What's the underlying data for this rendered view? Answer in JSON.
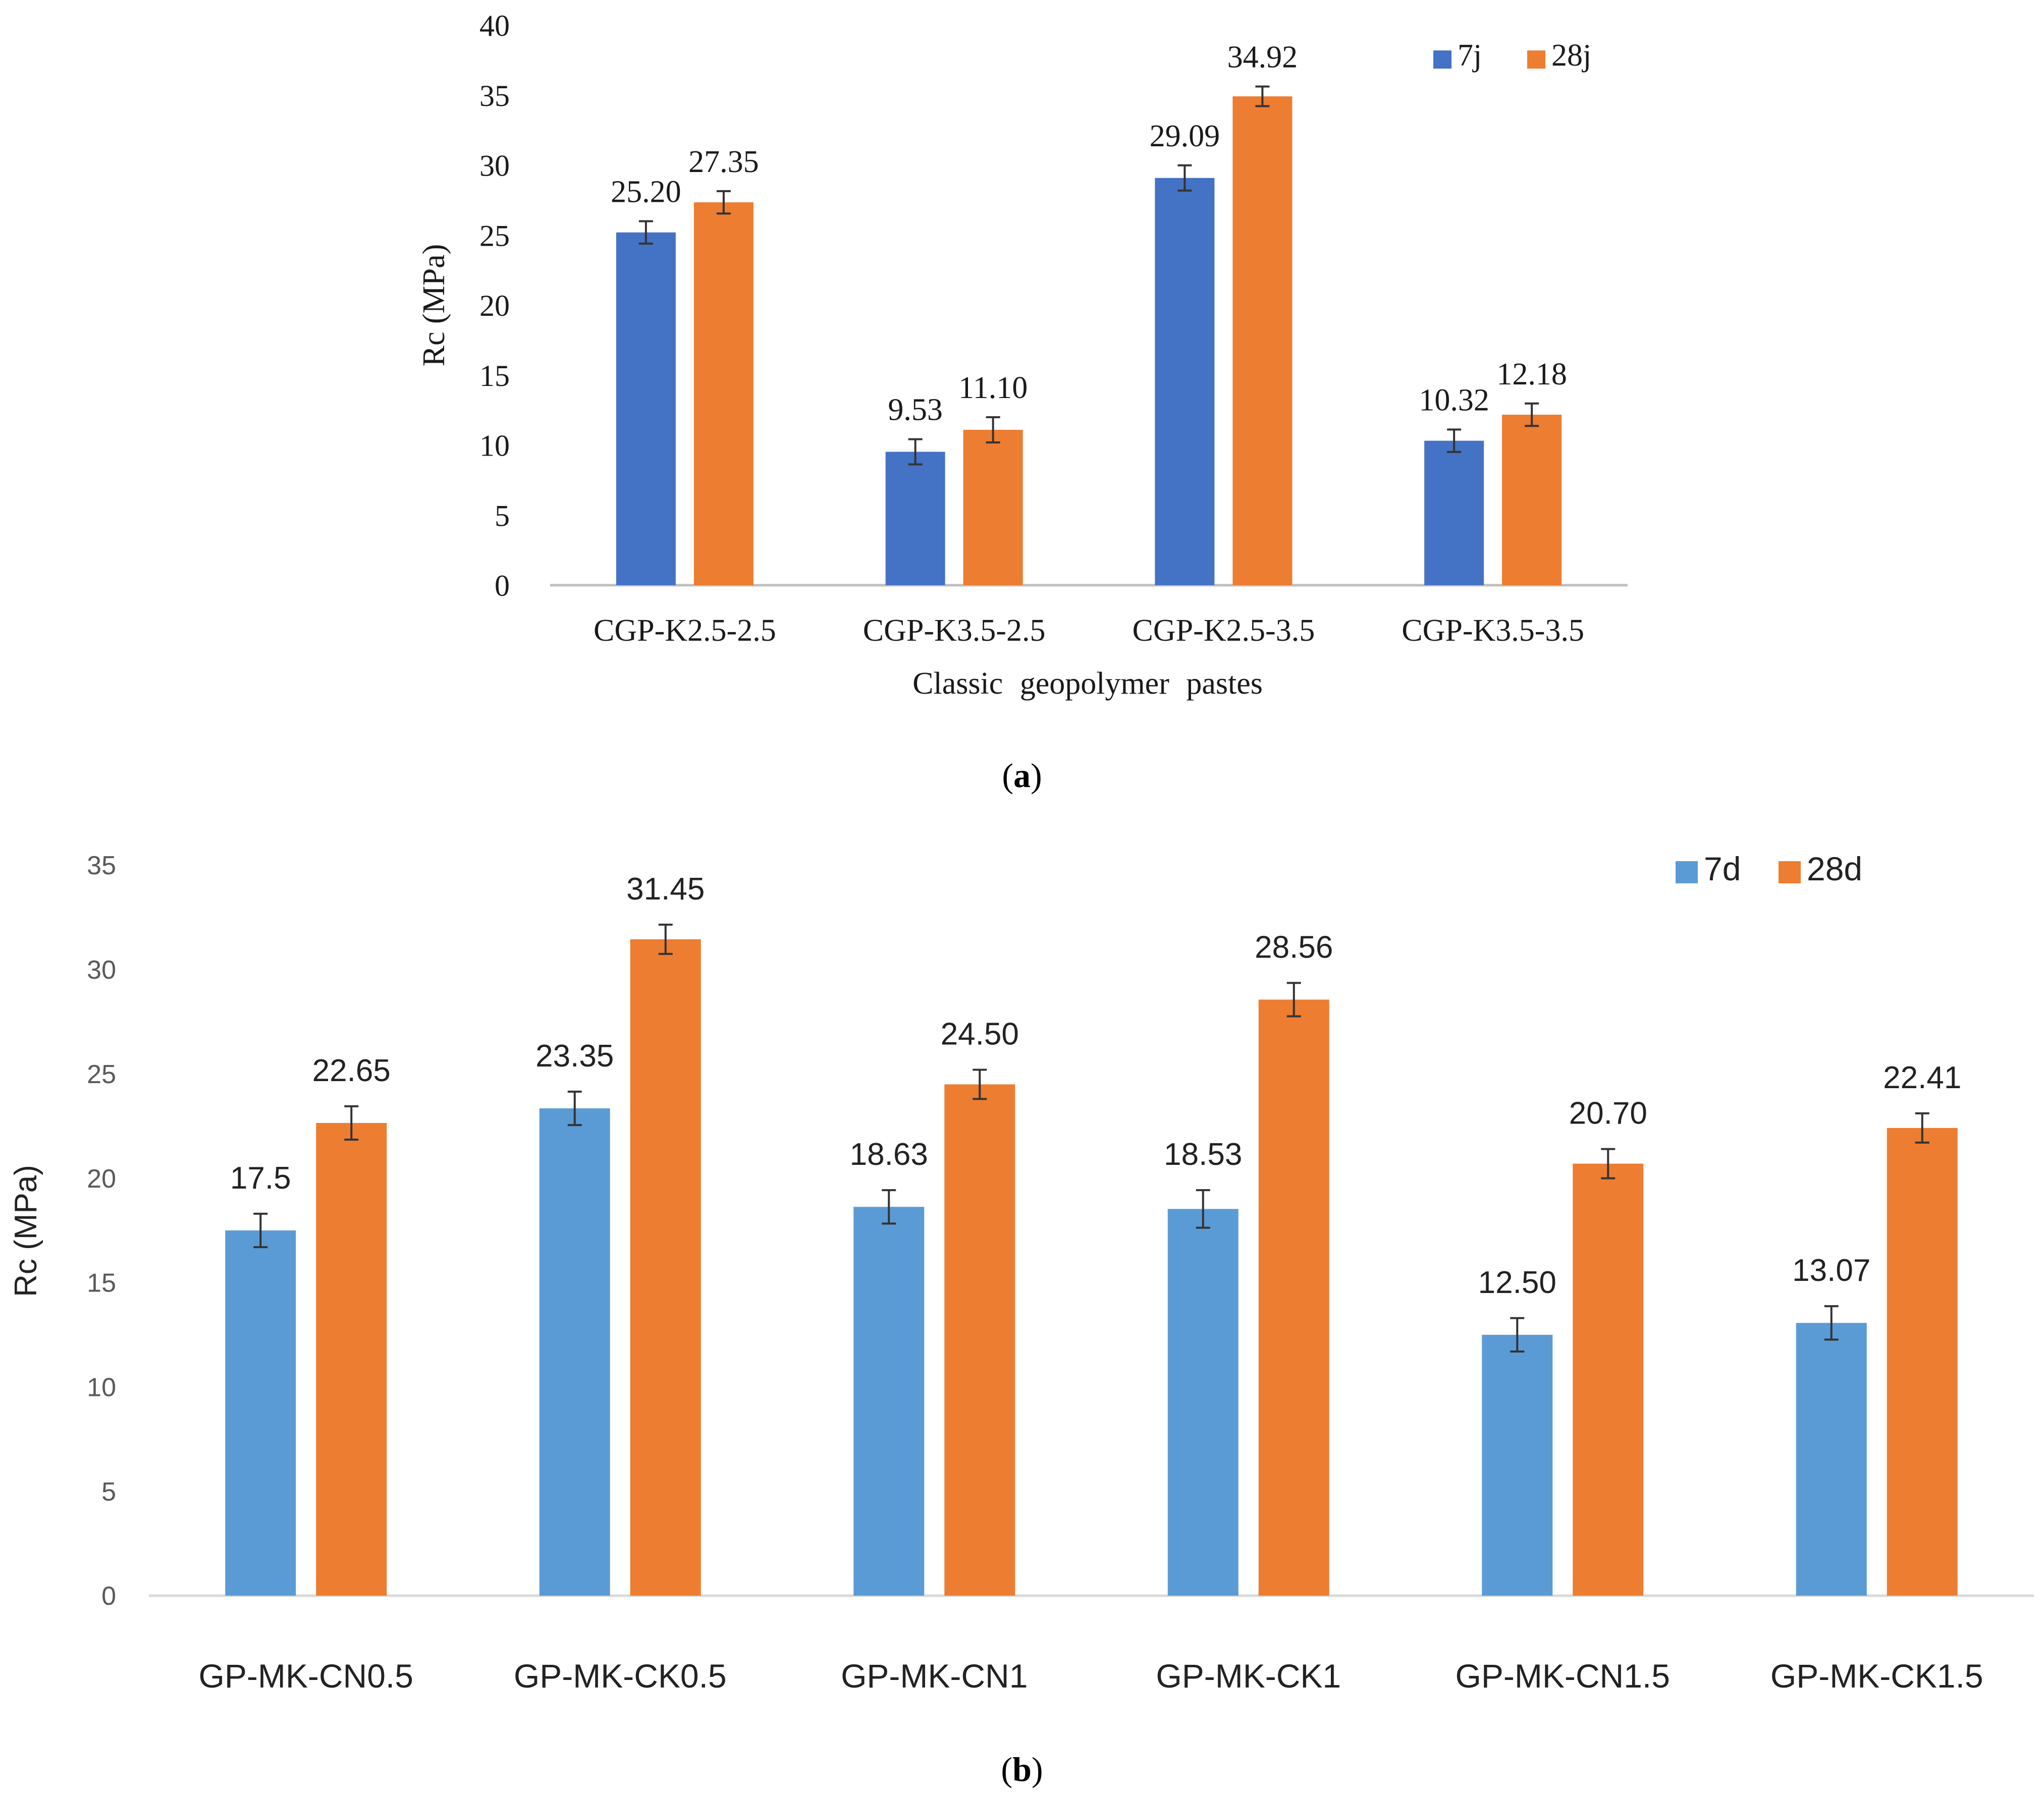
{
  "panel_a_caption": {
    "open": "(",
    "letter": "a",
    "close": ")"
  },
  "panel_b_caption": {
    "open": "(",
    "letter": "b",
    "close": ")"
  },
  "chart_data": [
    {
      "id": "a",
      "type": "bar",
      "title": "",
      "xlabel": "Classic geopolymer pastes",
      "ylabel": "Rc (MPa)",
      "ylim": [
        0,
        40
      ],
      "yticks": [
        0,
        5,
        10,
        15,
        20,
        25,
        30,
        35,
        40
      ],
      "grid": false,
      "legend_position": "top-right",
      "categories": [
        "CGP-K2.5-2.5",
        "CGP-K3.5-2.5",
        "CGP-K2.5-3.5",
        "CGP-K3.5-3.5"
      ],
      "series": [
        {
          "name": "7j",
          "color": "#4472c4",
          "values": [
            25.2,
            9.53,
            29.09,
            10.32
          ],
          "labels": [
            "25.20",
            "9.53",
            "29.09",
            "10.32"
          ],
          "error": [
            0.8,
            0.9,
            0.9,
            0.8
          ]
        },
        {
          "name": "28j",
          "color": "#ed7d31",
          "values": [
            27.35,
            11.1,
            34.92,
            12.18
          ],
          "labels": [
            "27.35",
            "11.10",
            "34.92",
            "12.18"
          ],
          "error": [
            0.8,
            0.9,
            0.7,
            0.8
          ]
        }
      ]
    },
    {
      "id": "b",
      "type": "bar",
      "title": "",
      "xlabel": "",
      "ylabel": "Rc (MPa)",
      "ylim": [
        0,
        35
      ],
      "yticks": [
        0,
        5,
        10,
        15,
        20,
        25,
        30,
        35
      ],
      "grid": false,
      "legend_position": "top-right",
      "categories": [
        "GP-MK-CN0.5",
        "GP-MK-CK0.5",
        "GP-MK-CN1",
        "GP-MK-CK1",
        "GP-MK-CN1.5",
        "GP-MK-CK1.5"
      ],
      "series": [
        {
          "name": "7d",
          "color": "#5b9bd5",
          "values": [
            17.5,
            23.35,
            18.63,
            18.53,
            12.5,
            13.07
          ],
          "labels": [
            "17.5",
            "23.35",
            "18.63",
            "18.53",
            "12.50",
            "13.07"
          ],
          "error": [
            0.8,
            0.8,
            0.8,
            0.9,
            0.8,
            0.8
          ]
        },
        {
          "name": "28d",
          "color": "#ed7d31",
          "values": [
            22.65,
            31.45,
            24.5,
            28.56,
            20.7,
            22.41
          ],
          "labels": [
            "22.65",
            "31.45",
            "24.50",
            "28.56",
            "20.70",
            "22.41"
          ],
          "error": [
            0.8,
            0.7,
            0.7,
            0.8,
            0.7,
            0.7
          ]
        }
      ]
    }
  ]
}
